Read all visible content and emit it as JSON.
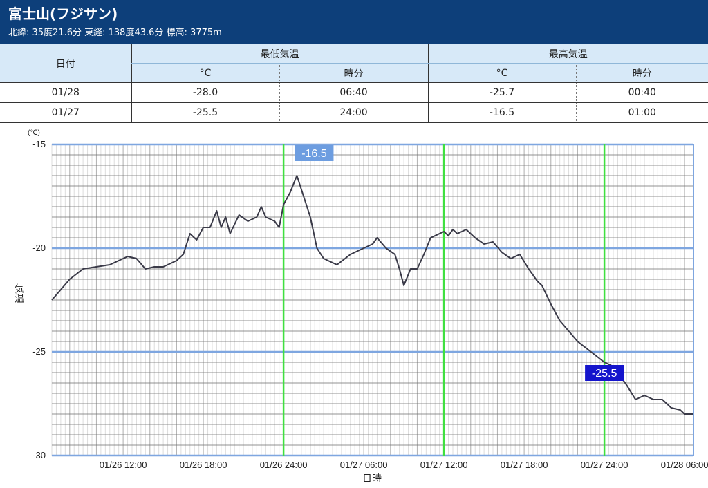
{
  "station": {
    "name": "富士山(フジサン)",
    "info": "北緯: 35度21.6分 東経: 138度43.6分 標高: 3775m"
  },
  "table": {
    "date_header": "日付",
    "min_header": "最低気温",
    "max_header": "最高気温",
    "unit_c": "°C",
    "time_label": "時分",
    "rows": [
      {
        "date": "01/28",
        "min_c": "-28.0",
        "min_time": "06:40",
        "max_c": "-25.7",
        "max_time": "00:40"
      },
      {
        "date": "01/27",
        "min_c": "-25.5",
        "min_time": "24:00",
        "max_c": "-16.5",
        "max_time": "01:00"
      }
    ]
  },
  "colors": {
    "header_bg": "#0d3f7a",
    "table_header_bg": "#d7e9f8",
    "major_grid": "#7ea6e0",
    "marker_line": "#3fe03f",
    "max_label_bg": "#6d9de0",
    "min_label_bg": "#1515cc",
    "series_line": "#3a3a48"
  },
  "chart_data": {
    "type": "line",
    "ylabel": "気温",
    "yunit": "(℃)",
    "xlabel": "日時",
    "ylim": [
      -30,
      -15
    ],
    "yticks": [
      -15,
      -20,
      -25,
      -30
    ],
    "x_range": [
      "01/26 06:40",
      "01/28 06:40"
    ],
    "xticks": [
      "01/26 12:00",
      "01/26 18:00",
      "01/26 24:00",
      "01/27 06:00",
      "01/27 12:00",
      "01/27 18:00",
      "01/27 24:00",
      "01/28 06:00"
    ],
    "markers": [
      "01/26 24:00",
      "01/27 12:00",
      "01/27 24:00"
    ],
    "annotations": [
      {
        "label": "-16.5",
        "x": "01/27 01:00",
        "y": -16.5,
        "kind": "max"
      },
      {
        "label": "-25.5",
        "x": "01/27 24:00",
        "y": -25.5,
        "kind": "min"
      }
    ],
    "series": [
      {
        "points": [
          [
            "01/26 06:40",
            -22.5
          ],
          [
            "01/26 07:20",
            -22.0
          ],
          [
            "01/26 08:00",
            -21.5
          ],
          [
            "01/26 09:00",
            -21.0
          ],
          [
            "01/26 10:00",
            -20.9
          ],
          [
            "01/26 11:00",
            -20.8
          ],
          [
            "01/26 12:20",
            -20.4
          ],
          [
            "01/26 13:00",
            -20.5
          ],
          [
            "01/26 13:40",
            -21.0
          ],
          [
            "01/26 14:20",
            -20.9
          ],
          [
            "01/26 15:00",
            -20.9
          ],
          [
            "01/26 16:00",
            -20.6
          ],
          [
            "01/26 16:30",
            -20.3
          ],
          [
            "01/26 17:00",
            -19.3
          ],
          [
            "01/26 17:30",
            -19.6
          ],
          [
            "01/26 18:00",
            -19.0
          ],
          [
            "01/26 18:30",
            -19.0
          ],
          [
            "01/26 19:00",
            -18.2
          ],
          [
            "01/26 19:20",
            -19.0
          ],
          [
            "01/26 19:40",
            -18.5
          ],
          [
            "01/26 20:00",
            -19.3
          ],
          [
            "01/26 20:40",
            -18.4
          ],
          [
            "01/26 21:20",
            -18.7
          ],
          [
            "01/26 22:00",
            -18.5
          ],
          [
            "01/26 22:20",
            -18.0
          ],
          [
            "01/26 22:40",
            -18.5
          ],
          [
            "01/26 23:20",
            -18.7
          ],
          [
            "01/26 23:40",
            -19.0
          ],
          [
            "01/27 00:00",
            -17.9
          ],
          [
            "01/27 00:30",
            -17.3
          ],
          [
            "01/27 01:00",
            -16.5
          ],
          [
            "01/27 01:30",
            -17.5
          ],
          [
            "01/27 02:00",
            -18.5
          ],
          [
            "01/27 02:30",
            -20.0
          ],
          [
            "01/27 03:00",
            -20.5
          ],
          [
            "01/27 04:00",
            -20.8
          ],
          [
            "01/27 05:00",
            -20.3
          ],
          [
            "01/27 06:00",
            -20.0
          ],
          [
            "01/27 06:40",
            -19.8
          ],
          [
            "01/27 07:00",
            -19.5
          ],
          [
            "01/27 07:40",
            -20.0
          ],
          [
            "01/27 08:20",
            -20.3
          ],
          [
            "01/27 08:40",
            -21.0
          ],
          [
            "01/27 09:00",
            -21.8
          ],
          [
            "01/27 09:30",
            -21.0
          ],
          [
            "01/27 10:00",
            -21.0
          ],
          [
            "01/27 10:30",
            -20.3
          ],
          [
            "01/27 11:00",
            -19.5
          ],
          [
            "01/27 12:00",
            -19.2
          ],
          [
            "01/27 12:20",
            -19.4
          ],
          [
            "01/27 12:40",
            -19.1
          ],
          [
            "01/27 13:00",
            -19.3
          ],
          [
            "01/27 13:40",
            -19.1
          ],
          [
            "01/27 14:20",
            -19.5
          ],
          [
            "01/27 15:00",
            -19.8
          ],
          [
            "01/27 15:40",
            -19.7
          ],
          [
            "01/27 16:20",
            -20.2
          ],
          [
            "01/27 17:00",
            -20.5
          ],
          [
            "01/27 17:40",
            -20.3
          ],
          [
            "01/27 18:20",
            -21.0
          ],
          [
            "01/27 19:00",
            -21.6
          ],
          [
            "01/27 19:20",
            -21.8
          ],
          [
            "01/27 20:00",
            -22.7
          ],
          [
            "01/27 20:40",
            -23.5
          ],
          [
            "01/27 21:20",
            -24.0
          ],
          [
            "01/27 22:00",
            -24.5
          ],
          [
            "01/27 23:00",
            -25.0
          ],
          [
            "01/28 00:00",
            -25.5
          ],
          [
            "01/28 00:40",
            -25.7
          ],
          [
            "01/28 01:00",
            -26.0
          ],
          [
            "01/28 01:40",
            -26.6
          ],
          [
            "01/28 02:20",
            -27.3
          ],
          [
            "01/28 03:00",
            -27.1
          ],
          [
            "01/28 03:40",
            -27.3
          ],
          [
            "01/28 04:20",
            -27.3
          ],
          [
            "01/28 05:00",
            -27.7
          ],
          [
            "01/28 05:40",
            -27.8
          ],
          [
            "01/28 06:00",
            -28.0
          ],
          [
            "01/28 06:40",
            -28.0
          ]
        ]
      }
    ]
  }
}
